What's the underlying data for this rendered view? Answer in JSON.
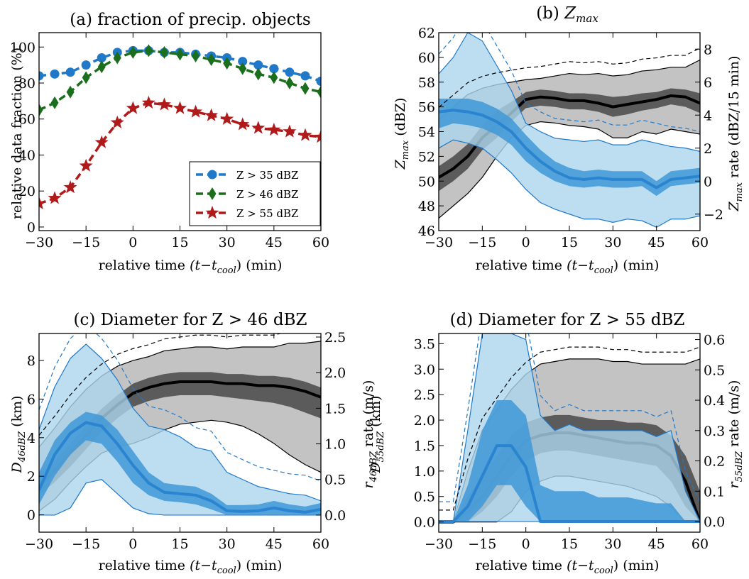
{
  "figure": {
    "panels": [
      {
        "id": "a",
        "title": "(a) fraction of precip. objects",
        "xlabel": "relative time",
        "xlabel_math": "(t−t",
        "xlabel_sub": "cool",
        "xlabel_end": ") (min)",
        "ylabel": "relative data fraction (%)"
      },
      {
        "id": "b",
        "title": "(b) ",
        "title_math": "Z",
        "title_sub": "max",
        "xlabel": "relative time",
        "xlabel_math": "(t−t",
        "xlabel_sub": "cool",
        "xlabel_end": ") (min)",
        "ylabel_math": "Z",
        "ylabel_sub": "max",
        "ylabel": " (dBZ)",
        "y2label_math": "Z",
        "y2label_sub": "max",
        "y2label": " rate (dBZ/15 min)"
      },
      {
        "id": "c",
        "title": "(c) Diameter for Z > 46 dBZ",
        "xlabel": "relative time",
        "xlabel_math": "(t−t",
        "xlabel_sub": "cool",
        "xlabel_end": ") (min)",
        "ylabel_math": "D",
        "ylabel_sub": "46dBZ",
        "ylabel": " (km)",
        "y2label_math": "r",
        "y2label_sub": "46dBZ",
        "y2label": " rate (m/s)"
      },
      {
        "id": "d",
        "title": "(d) Diameter for Z > 55 dBZ",
        "xlabel": "relative time",
        "xlabel_math": "(t−t",
        "xlabel_sub": "cool",
        "xlabel_end": ") (min)",
        "ylabel_math": "D",
        "ylabel_sub": "55dBZ",
        "ylabel": " (km)",
        "y2label_math": "r",
        "y2label_sub": "55dBZ",
        "y2label": " rate (m/s)"
      }
    ]
  },
  "chart_data": [
    {
      "panel": "a",
      "type": "line",
      "x": [
        -30,
        -25,
        -20,
        -15,
        -10,
        -5,
        0,
        5,
        10,
        15,
        20,
        25,
        30,
        35,
        40,
        45,
        50,
        55,
        60
      ],
      "xlim": [
        -30,
        60
      ],
      "ylim": [
        -2,
        108
      ],
      "xticks": [
        -30,
        -15,
        0,
        15,
        30,
        45,
        60
      ],
      "yticks": [
        0,
        20,
        40,
        60,
        80,
        100
      ],
      "xtick_labels": [
        "−30",
        "−15",
        "0",
        "15",
        "30",
        "45",
        "60"
      ],
      "ytick_labels": [
        "0",
        "20",
        "40",
        "60",
        "80",
        "100"
      ],
      "legend_position": "lower right",
      "series": [
        {
          "name": "Z > 35 dBZ",
          "color": "#1f78c8",
          "marker": "circle",
          "values": [
            84,
            85,
            86,
            90,
            94,
            97,
            98,
            98,
            97,
            97,
            96,
            95,
            94,
            92,
            90,
            88,
            86,
            84,
            81
          ]
        },
        {
          "name": "Z > 46 dBZ",
          "color": "#1b6e1b",
          "marker": "diamond",
          "values": [
            65,
            69,
            75,
            83,
            89,
            94,
            97,
            98,
            97,
            96,
            95,
            93,
            91,
            88,
            85,
            83,
            80,
            77,
            75
          ]
        },
        {
          "name": "Z > 55 dBZ",
          "color": "#b01a1a",
          "marker": "star",
          "values": [
            13,
            16,
            22,
            34,
            47,
            58,
            66,
            69,
            68,
            66,
            64,
            62,
            60,
            57,
            55,
            54,
            53,
            51,
            50
          ]
        }
      ]
    },
    {
      "panel": "b",
      "type": "area",
      "x": [
        -30,
        -25,
        -20,
        -15,
        -10,
        -5,
        0,
        5,
        10,
        15,
        20,
        25,
        30,
        35,
        40,
        45,
        50,
        55,
        60
      ],
      "xlim": [
        -30,
        60
      ],
      "ylim": [
        46,
        62
      ],
      "y2lim": [
        -3,
        9
      ],
      "xticks": [
        -30,
        -15,
        0,
        15,
        30,
        45,
        60
      ],
      "yticks": [
        46,
        48,
        50,
        52,
        54,
        56,
        58,
        60,
        62
      ],
      "y2ticks": [
        -2,
        0,
        2,
        4,
        6,
        8
      ],
      "xtick_labels": [
        "−30",
        "−15",
        "0",
        "15",
        "30",
        "45",
        "60"
      ],
      "ytick_labels": [
        "46",
        "48",
        "50",
        "52",
        "54",
        "56",
        "58",
        "60",
        "62"
      ],
      "y2tick_labels": [
        "−2",
        "0",
        "2",
        "4",
        "6",
        "8"
      ],
      "series": [
        {
          "axis": "left",
          "color": "#000000",
          "fill_outer": "#bdbdbd",
          "fill_inner": "#555555",
          "median": [
            50.3,
            51,
            52,
            53.5,
            54.5,
            55.5,
            56.6,
            56.8,
            56.7,
            56.5,
            56.5,
            56.3,
            56,
            56.2,
            56.4,
            56.6,
            56.9,
            56.8,
            56.3
          ],
          "q1": [
            49.2,
            50,
            51,
            52.5,
            53.5,
            54.8,
            55.9,
            56.1,
            56,
            55.8,
            55.8,
            55.6,
            55.2,
            55.4,
            55.7,
            55.9,
            56.2,
            56,
            55.5
          ],
          "q3": [
            51.2,
            52,
            53,
            54.5,
            55.7,
            56.4,
            57.2,
            57.4,
            57.3,
            57.1,
            57.1,
            57,
            56.8,
            56.9,
            57.1,
            57.2,
            57.5,
            57.4,
            57.1
          ],
          "p10": [
            47,
            48,
            49,
            50.3,
            52,
            53.5,
            54.5,
            54.8,
            54.7,
            54.5,
            54.4,
            54.2,
            53.5,
            53.5,
            54,
            53.8,
            54.2,
            54,
            53.8
          ],
          "p90": [
            55,
            56,
            57,
            57.5,
            57.8,
            58,
            58.2,
            58.3,
            58.5,
            58.7,
            58.6,
            58.7,
            58.5,
            58.6,
            58.9,
            59,
            59.2,
            59.2,
            59.8
          ]
        },
        {
          "axis": "right",
          "color": "#1f78c8",
          "fill_outer": "#add6ee",
          "fill_inner": "#3f98d8",
          "median": [
            4.2,
            4.3,
            4.2,
            4,
            3.6,
            3,
            2,
            1.2,
            0.6,
            0.2,
            0.1,
            0.2,
            0.1,
            0.1,
            0.1,
            -0.4,
            0.1,
            0.2,
            0.3
          ],
          "q1": [
            3.2,
            3.5,
            3.4,
            3.2,
            2.8,
            2.2,
            1.2,
            0.5,
            0,
            -0.3,
            -0.4,
            -0.3,
            -0.4,
            -0.4,
            -0.3,
            -0.9,
            -0.3,
            -0.2,
            -0.1
          ],
          "q3": [
            5,
            5,
            5,
            4.8,
            4.4,
            3.8,
            2.8,
            1.9,
            1.2,
            0.8,
            0.6,
            0.7,
            0.6,
            0.6,
            0.6,
            0,
            0.6,
            0.7,
            0.8
          ],
          "p10": [
            2,
            2.5,
            2.3,
            2,
            1.3,
            0.5,
            -0.5,
            -1.3,
            -1.7,
            -2,
            -2.3,
            -2.3,
            -2.5,
            -2.3,
            -2.4,
            -2.8,
            -2.3,
            -2.3,
            -2.1
          ],
          "p90": [
            6.5,
            7.5,
            9,
            8.5,
            7,
            5.5,
            3.5,
            3,
            2.6,
            2.5,
            2.4,
            2.5,
            2.2,
            2.2,
            2.5,
            2.3,
            2.1,
            2,
            1.8
          ]
        }
      ]
    },
    {
      "panel": "c",
      "type": "area",
      "x": [
        -30,
        -25,
        -20,
        -15,
        -10,
        -5,
        0,
        5,
        10,
        15,
        20,
        25,
        30,
        35,
        40,
        45,
        50,
        55,
        60
      ],
      "xlim": [
        -30,
        60
      ],
      "ylim": [
        -0.9,
        9.4
      ],
      "y2lim": [
        -0.24,
        2.55
      ],
      "xticks": [
        -30,
        -15,
        0,
        15,
        30,
        45,
        60
      ],
      "yticks": [
        0,
        2,
        4,
        6,
        8
      ],
      "y2ticks": [
        0,
        0.5,
        1,
        1.5,
        2,
        2.5
      ],
      "xtick_labels": [
        "−30",
        "−15",
        "0",
        "15",
        "30",
        "45",
        "60"
      ],
      "ytick_labels": [
        "0",
        "2",
        "4",
        "6",
        "8"
      ],
      "y2tick_labels": [
        "0.0",
        "0.5",
        "1.0",
        "1.5",
        "2.0",
        "2.5"
      ],
      "series": [
        {
          "axis": "left",
          "color": "#000000",
          "fill_outer": "#bdbdbd",
          "fill_inner": "#555555",
          "median": [
            1.5,
            2.3,
            3.2,
            4.1,
            5,
            5.7,
            6.3,
            6.6,
            6.8,
            6.9,
            6.9,
            6.9,
            6.8,
            6.8,
            6.7,
            6.7,
            6.6,
            6.4,
            6.1
          ],
          "q1": [
            1,
            1.7,
            2.5,
            3.4,
            4.3,
            5,
            5.6,
            5.9,
            6.1,
            6.2,
            6.2,
            6.2,
            6.1,
            6,
            5.9,
            5.8,
            5.6,
            5.3,
            5
          ],
          "q3": [
            2.1,
            2.8,
            3.7,
            4.6,
            5.5,
            6.2,
            6.8,
            7.1,
            7.3,
            7.4,
            7.4,
            7.4,
            7.3,
            7.3,
            7.2,
            7.2,
            7.1,
            6.9,
            6.6
          ],
          "p10": [
            0.2,
            0.8,
            1.7,
            2.5,
            3.2,
            3.5,
            3.7,
            4,
            4.4,
            4.7,
            4.8,
            4.9,
            4.8,
            4.6,
            4.2,
            3.7,
            3.1,
            2.6,
            2.2
          ],
          "p90": [
            3.5,
            4.5,
            5.6,
            6.5,
            7.2,
            7.7,
            8,
            8.2,
            8.5,
            8.6,
            8.7,
            8.7,
            8.6,
            8.7,
            8.7,
            8.7,
            8.9,
            8.9,
            9
          ]
        },
        {
          "axis": "right",
          "color": "#1f78c8",
          "fill_outer": "#add6ee",
          "fill_inner": "#3f98d8",
          "median": [
            0.35,
            0.85,
            1.15,
            1.3,
            1.25,
            1,
            0.7,
            0.45,
            0.32,
            0.3,
            0.28,
            0.2,
            0.06,
            0.05,
            0.06,
            0.1,
            0.06,
            0.04,
            0.08
          ],
          "q1": [
            0.15,
            0.55,
            0.85,
            1.05,
            1,
            0.75,
            0.45,
            0.28,
            0.2,
            0.18,
            0.15,
            0.08,
            0,
            0,
            0,
            0,
            0,
            0,
            0
          ],
          "q3": [
            0.6,
            1.05,
            1.3,
            1.45,
            1.4,
            1.2,
            0.9,
            0.6,
            0.45,
            0.42,
            0.4,
            0.3,
            0.14,
            0.14,
            0.15,
            0.2,
            0.15,
            0.12,
            0.17
          ],
          "p10": [
            0,
            0,
            0.1,
            0.45,
            0.5,
            0.3,
            0.1,
            0.02,
            0,
            0,
            0,
            0,
            0,
            0,
            0,
            0,
            0,
            0,
            0
          ],
          "p90": [
            1.2,
            1.8,
            2.2,
            2.4,
            2.2,
            1.9,
            1.5,
            1.25,
            1.2,
            1.1,
            0.95,
            0.9,
            0.6,
            0.5,
            0.4,
            0.35,
            0.3,
            0.28,
            0.2
          ]
        }
      ]
    },
    {
      "panel": "d",
      "type": "area",
      "x": [
        -30,
        -25,
        -20,
        -15,
        -10,
        -5,
        0,
        5,
        10,
        15,
        20,
        25,
        30,
        35,
        40,
        45,
        50,
        55,
        60
      ],
      "xlim": [
        -30,
        60
      ],
      "ylim": [
        -0.2,
        3.7
      ],
      "y2lim": [
        -0.035,
        0.62
      ],
      "xticks": [
        -30,
        -15,
        0,
        15,
        30,
        45,
        60
      ],
      "yticks": [
        0,
        0.5,
        1,
        1.5,
        2,
        2.5,
        3,
        3.5
      ],
      "y2ticks": [
        0,
        0.1,
        0.2,
        0.3,
        0.4,
        0.5,
        0.6
      ],
      "xtick_labels": [
        "−30",
        "−15",
        "0",
        "15",
        "30",
        "45",
        "60"
      ],
      "ytick_labels": [
        "0.0",
        "0.5",
        "1.0",
        "1.5",
        "2.0",
        "2.5",
        "3.0",
        "3.5"
      ],
      "y2tick_labels": [
        "0.0",
        "0.1",
        "0.2",
        "0.3",
        "0.4",
        "0.5",
        "0.6"
      ],
      "series": [
        {
          "axis": "left",
          "color": "#000000",
          "fill_outer": "#bdbdbd",
          "fill_inner": "#555555",
          "median": [
            0,
            0,
            0.2,
            0.5,
            0.9,
            1.3,
            1.6,
            1.7,
            1.75,
            1.75,
            1.7,
            1.65,
            1.6,
            1.55,
            1.55,
            1.5,
            1.3,
            0.8,
            0
          ],
          "q1": [
            0,
            0,
            0,
            0.2,
            0.5,
            0.9,
            1.2,
            1.35,
            1.4,
            1.4,
            1.35,
            1.3,
            1.25,
            1.2,
            1.15,
            1.1,
            0.8,
            0.3,
            0
          ],
          "q3": [
            0,
            0,
            0.5,
            0.9,
            1.3,
            1.7,
            1.95,
            2.05,
            2.1,
            2.1,
            2.05,
            2,
            2,
            1.95,
            1.95,
            1.9,
            1.7,
            1.3,
            0.6
          ],
          "p10": [
            0,
            0,
            0,
            0,
            0,
            0.2,
            0.6,
            0.8,
            0.9,
            0.9,
            0.85,
            0.8,
            0.75,
            0.7,
            0.6,
            0.5,
            0.3,
            0,
            0
          ],
          "p90": [
            0,
            0,
            1,
            1.8,
            2.2,
            2.6,
            2.9,
            3.1,
            3.15,
            3.2,
            3.2,
            3.2,
            3.15,
            3.15,
            3.1,
            3.1,
            3.1,
            3.1,
            3.2
          ]
        },
        {
          "axis": "right",
          "color": "#1f78c8",
          "fill_outer": "#add6ee",
          "fill_inner": "#3f98d8",
          "median": [
            0,
            0,
            0.05,
            0.15,
            0.25,
            0.25,
            0.18,
            0,
            0,
            0,
            0,
            0,
            0,
            0,
            0,
            0,
            0,
            0,
            0
          ],
          "q1": [
            0,
            0,
            0,
            0.05,
            0.12,
            0.12,
            0.05,
            0,
            0,
            0,
            0,
            0,
            0,
            0,
            0,
            0,
            0,
            0,
            0
          ],
          "q3": [
            0,
            0,
            0.12,
            0.3,
            0.4,
            0.4,
            0.35,
            0.12,
            0.1,
            0.1,
            0.1,
            0.08,
            0.08,
            0.08,
            0.07,
            0.06,
            0.06,
            0,
            0
          ],
          "p10": [
            0,
            0,
            0,
            0,
            0,
            0,
            0,
            0,
            0,
            0,
            0,
            0,
            0,
            0,
            0,
            0,
            0,
            0,
            0
          ],
          "p90": [
            0,
            0,
            0.3,
            0.62,
            0.62,
            0.62,
            0.6,
            0.35,
            0.3,
            0.32,
            0.3,
            0.3,
            0.3,
            0.3,
            0.3,
            0.28,
            0.3,
            0.1,
            0
          ]
        }
      ]
    }
  ]
}
